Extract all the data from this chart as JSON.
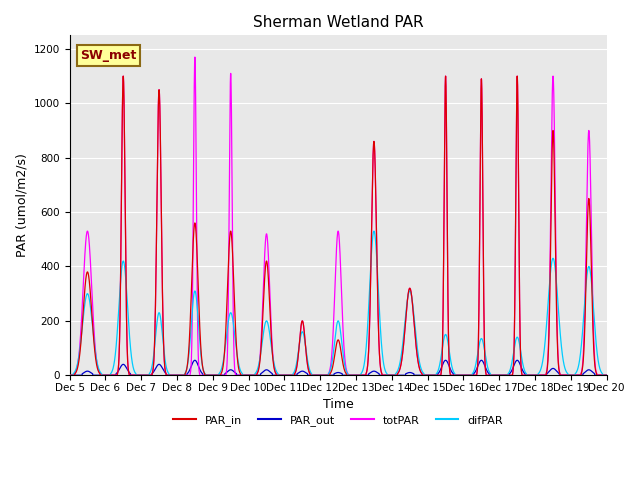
{
  "title": "Sherman Wetland PAR",
  "ylabel": "PAR (umol/m2/s)",
  "xlabel": "Time",
  "annotation": "SW_met",
  "ylim": [
    0,
    1250
  ],
  "yticks": [
    0,
    200,
    400,
    600,
    800,
    1000,
    1200
  ],
  "xtick_labels": [
    "Dec 5",
    "Dec 6",
    "Dec 7",
    "Dec 8",
    "Dec 9",
    "Dec 10",
    "Dec 11",
    "Dec 12",
    "Dec 13",
    "Dec 14",
    "Dec 15",
    "Dec 16",
    "Dec 17",
    "Dec 18",
    "Dec 19",
    "Dec 20"
  ],
  "colors": {
    "PAR_in": "#dd0000",
    "PAR_out": "#0000cc",
    "totPAR": "#ff00ff",
    "difPAR": "#00ccff"
  },
  "background_color": "#e8e8e8",
  "grid_color": "#ffffff",
  "annotation_bg": "#ffff99",
  "annotation_fg": "#8b0000",
  "annotation_border": "#8b6914",
  "title_fontsize": 11,
  "axis_label_fontsize": 9,
  "tick_fontsize": 7.5,
  "legend_fontsize": 8
}
